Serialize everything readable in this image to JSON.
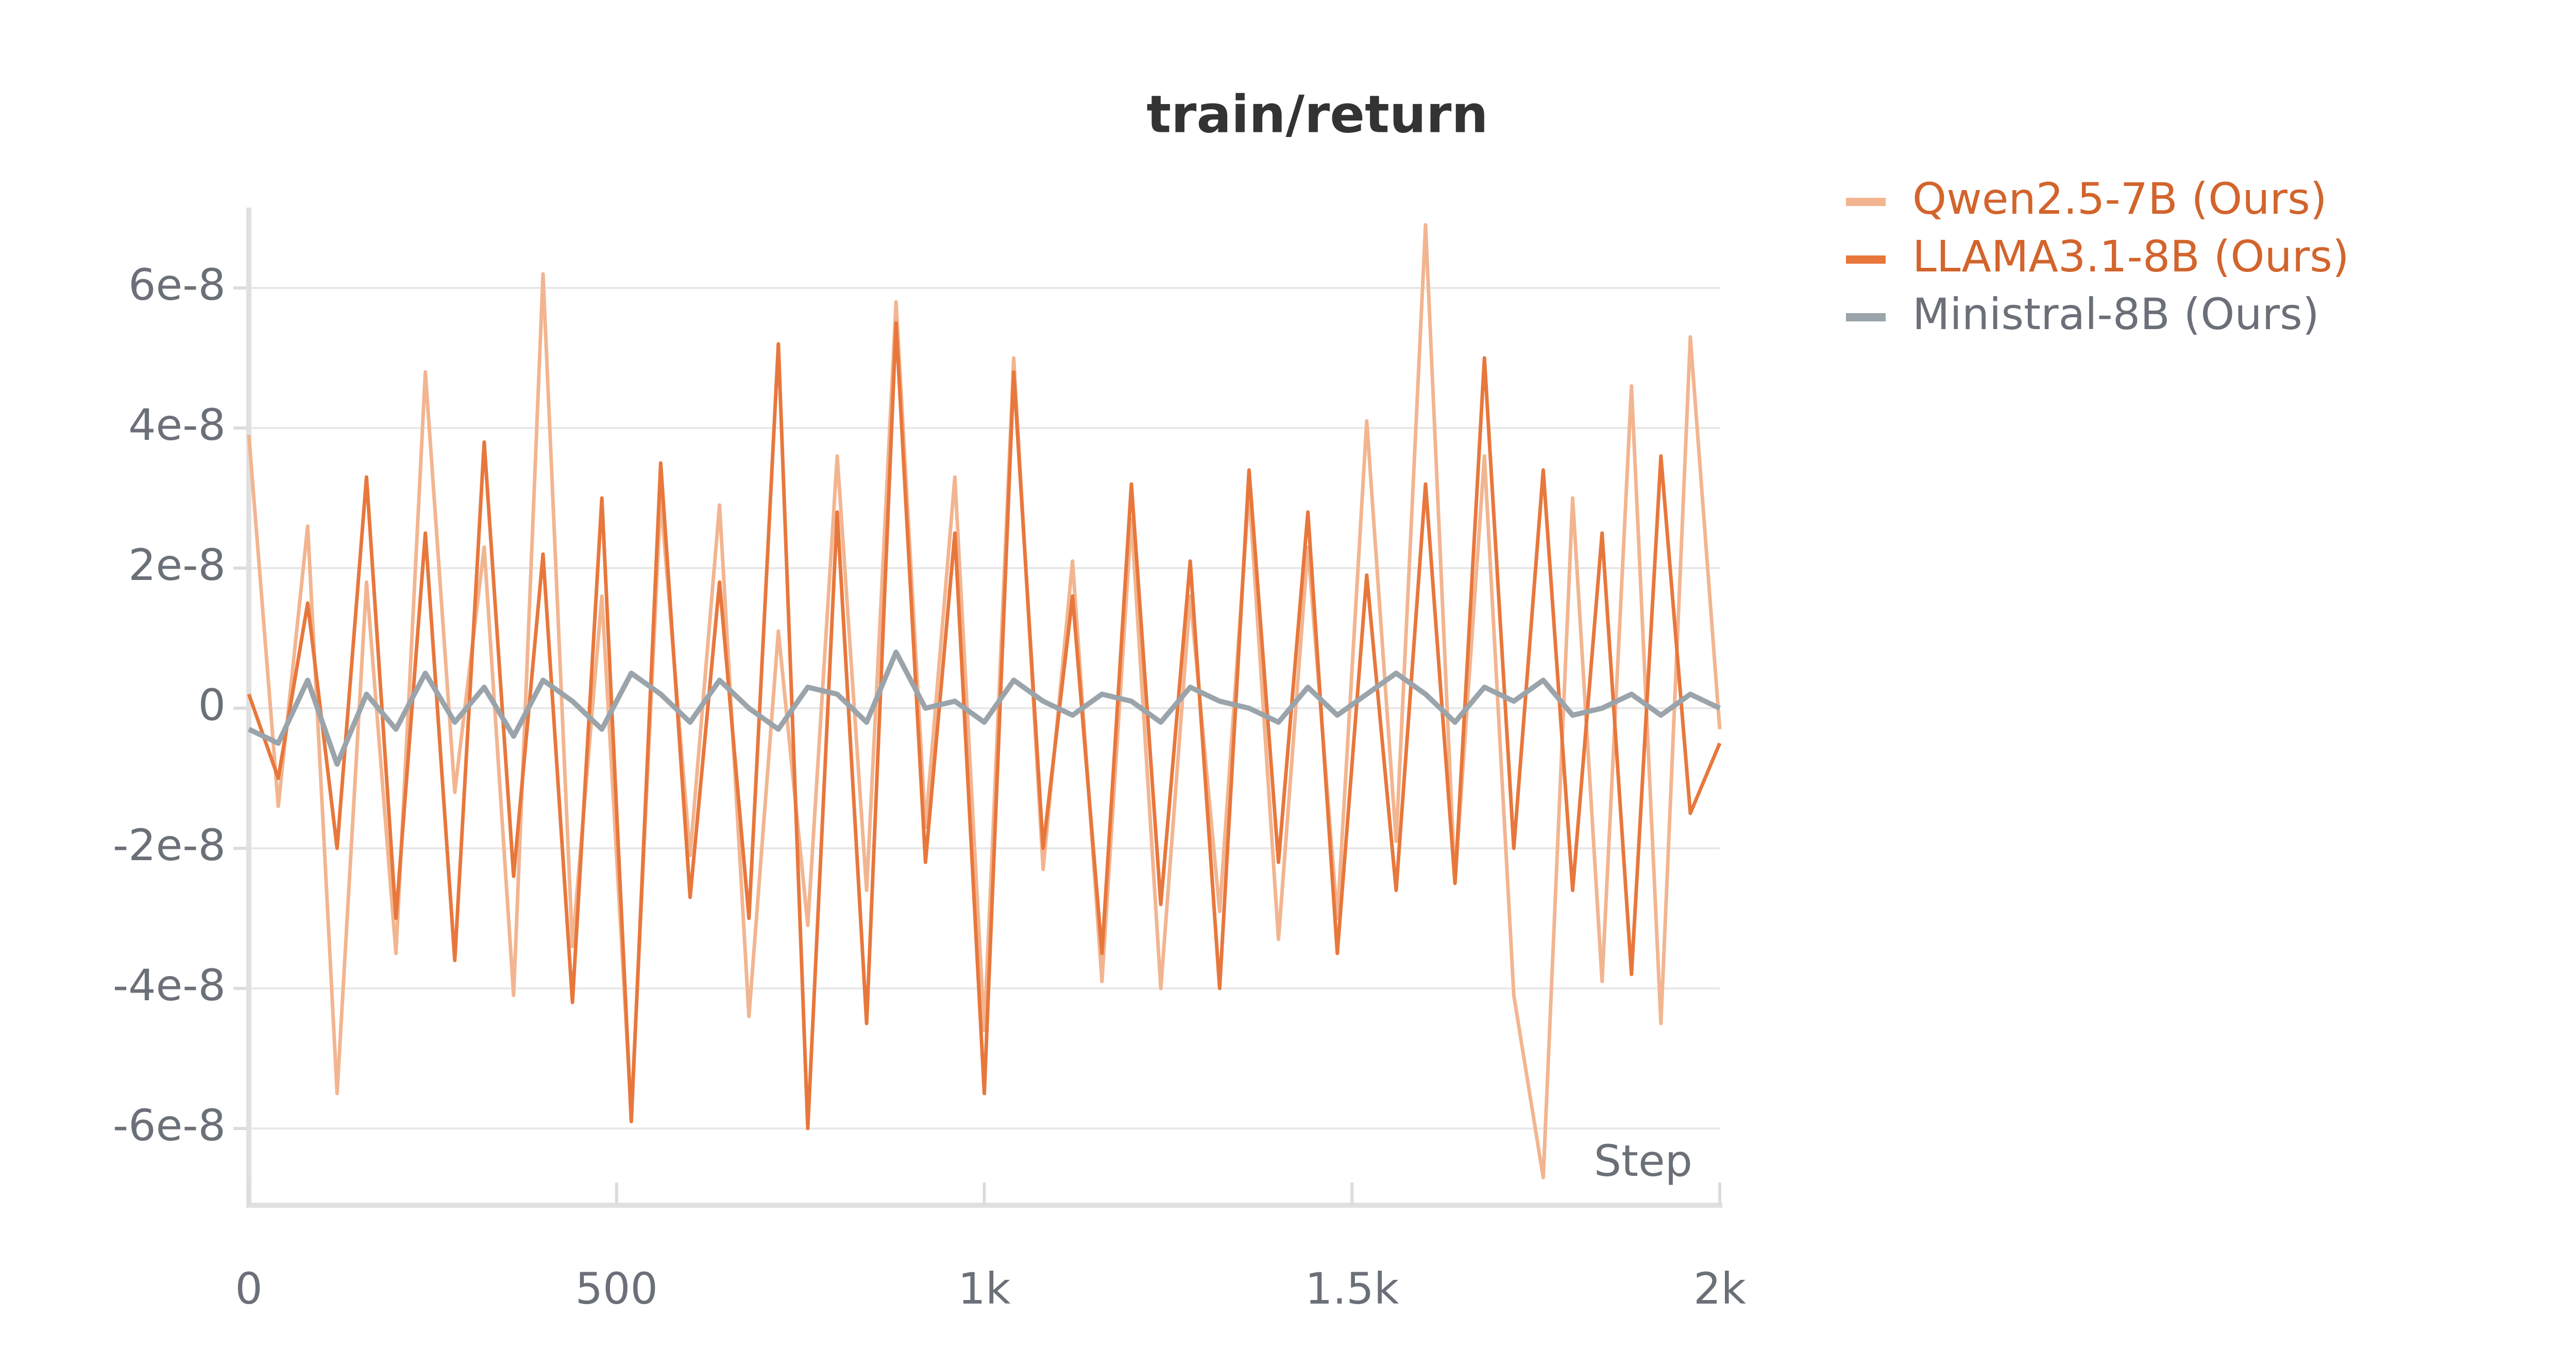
{
  "chart_data": {
    "type": "line",
    "title": "train/return",
    "xlabel": "Step",
    "x": [
      0,
      40,
      80,
      120,
      160,
      200,
      240,
      280,
      320,
      360,
      400,
      440,
      480,
      520,
      560,
      600,
      640,
      680,
      720,
      760,
      800,
      840,
      880,
      920,
      960,
      1000,
      1040,
      1080,
      1120,
      1160,
      1200,
      1240,
      1280,
      1320,
      1360,
      1400,
      1440,
      1480,
      1520,
      1560,
      1600,
      1640,
      1680,
      1720,
      1760,
      1800,
      1840,
      1880,
      1920,
      1960,
      2000
    ],
    "series": [
      {
        "name": "Qwen2.5-7B (Ours)",
        "color": "#f2b590",
        "values": [
          3.9e-08,
          -1.4e-08,
          2.6e-08,
          -5.5e-08,
          1.8e-08,
          -3.5e-08,
          4.8e-08,
          -1.2e-08,
          2.3e-08,
          -4.1e-08,
          6.2e-08,
          -3.4e-08,
          1.6e-08,
          -5.8e-08,
          3e-08,
          -2.1e-08,
          2.9e-08,
          -4.4e-08,
          1.1e-08,
          -3.1e-08,
          3.6e-08,
          -2.6e-08,
          5.8e-08,
          -1.7e-08,
          3.3e-08,
          -4.6e-08,
          5e-08,
          -2.3e-08,
          2.1e-08,
          -3.9e-08,
          2.7e-08,
          -4e-08,
          1.6e-08,
          -2.9e-08,
          3.1e-08,
          -3.3e-08,
          2.3e-08,
          -3e-08,
          4.1e-08,
          -1.9e-08,
          6.9e-08,
          -2.5e-08,
          3.6e-08,
          -4.1e-08,
          -6.7e-08,
          3e-08,
          -3.9e-08,
          4.6e-08,
          -4.5e-08,
          5.3e-08,
          -3e-09
        ]
      },
      {
        "name": "LLAMA3.1-8B (Ours)",
        "color": "#e8773c",
        "values": [
          2e-09,
          -1e-08,
          1.5e-08,
          -2e-08,
          3.3e-08,
          -3e-08,
          2.5e-08,
          -3.6e-08,
          3.8e-08,
          -2.4e-08,
          2.2e-08,
          -4.2e-08,
          3e-08,
          -5.9e-08,
          3.5e-08,
          -2.7e-08,
          1.8e-08,
          -3e-08,
          5.2e-08,
          -6e-08,
          2.8e-08,
          -4.5e-08,
          5.5e-08,
          -2.2e-08,
          2.5e-08,
          -5.5e-08,
          4.8e-08,
          -2e-08,
          1.6e-08,
          -3.5e-08,
          3.2e-08,
          -2.8e-08,
          2.1e-08,
          -4e-08,
          3.4e-08,
          -2.2e-08,
          2.8e-08,
          -3.5e-08,
          1.9e-08,
          -2.6e-08,
          3.2e-08,
          -2.5e-08,
          5e-08,
          -2e-08,
          3.4e-08,
          -2.6e-08,
          2.5e-08,
          -3.8e-08,
          3.6e-08,
          -1.5e-08,
          -5e-09
        ]
      },
      {
        "name": "Ministral-8B (Ours)",
        "color": "#9aa4aa",
        "values": [
          -3e-09,
          -5e-09,
          4e-09,
          -8e-09,
          2e-09,
          -3e-09,
          5e-09,
          -2e-09,
          3e-09,
          -4e-09,
          4e-09,
          1e-09,
          -3e-09,
          5e-09,
          2e-09,
          -2e-09,
          4e-09,
          0,
          -3e-09,
          3e-09,
          2e-09,
          -2e-09,
          8e-09,
          0,
          1e-09,
          -2e-09,
          4e-09,
          1e-09,
          -1e-09,
          2e-09,
          1e-09,
          -2e-09,
          3e-09,
          1e-09,
          0,
          -2e-09,
          3e-09,
          -1e-09,
          2e-09,
          5e-09,
          2e-09,
          -2e-09,
          3e-09,
          1e-09,
          4e-09,
          -1e-09,
          0,
          2e-09,
          -1e-09,
          2e-09,
          0
        ]
      }
    ],
    "xlim": [
      0,
      2000
    ],
    "xticks": [
      0,
      500,
      {
        "value": 1000,
        "label": "1k"
      },
      {
        "value": 1500,
        "label": "1.5k"
      },
      {
        "value": 2000,
        "label": "2k"
      }
    ],
    "ylim": [
      -7e-08,
      7e-08
    ],
    "yticks": [
      -6e-08,
      -4e-08,
      -2e-08,
      0,
      2e-08,
      4e-08,
      6e-08
    ],
    "grid": true,
    "legend": "right"
  }
}
